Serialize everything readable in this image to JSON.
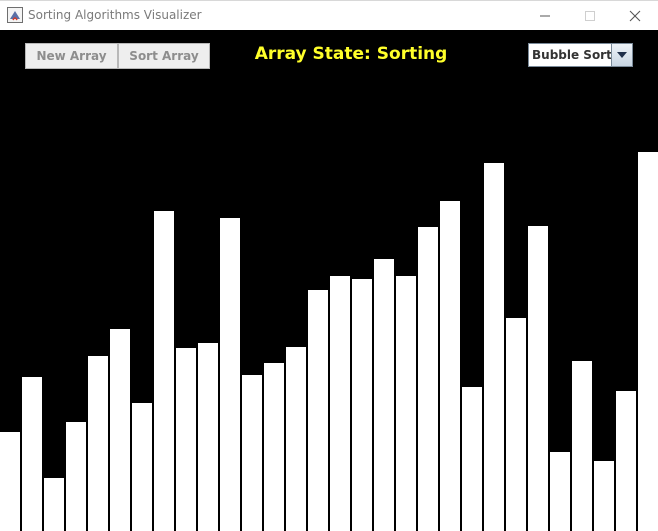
{
  "window": {
    "title": "Sorting Algorithms Visualizer"
  },
  "toolbar": {
    "new_array_label": "New Array",
    "sort_array_label": "Sort Array",
    "state_label": "Array State: Sorting"
  },
  "algorithm_select": {
    "selected": "Bubble Sort"
  },
  "colors": {
    "background": "#000000",
    "bar": "#ffffff",
    "state_text": "#ffff2a"
  },
  "array": {
    "values": [
      99,
      154,
      53,
      109,
      175,
      202,
      128,
      320,
      183,
      188,
      313,
      156,
      168,
      184,
      241,
      255,
      252,
      272,
      255,
      304,
      330,
      144,
      368,
      213,
      305,
      79,
      170,
      70,
      140,
      379
    ]
  }
}
